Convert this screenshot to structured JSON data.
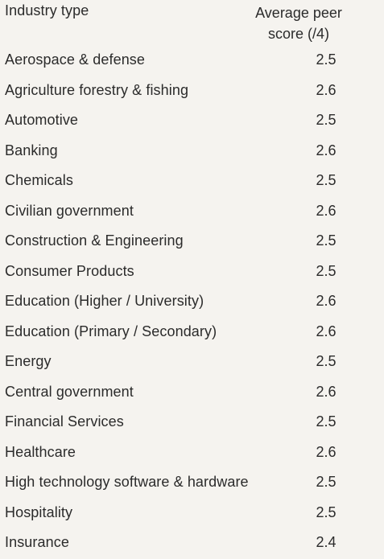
{
  "header": {
    "industry_label": "Industry type",
    "score_label_line1": "Average peer",
    "score_label_line2": "score (/4)"
  },
  "rows": [
    {
      "industry": "Aerospace & defense",
      "score": "2.5"
    },
    {
      "industry": "Agriculture forestry & fishing",
      "score": "2.6"
    },
    {
      "industry": "Automotive",
      "score": "2.5"
    },
    {
      "industry": "Banking",
      "score": "2.6"
    },
    {
      "industry": "Chemicals",
      "score": "2.5"
    },
    {
      "industry": "Civilian government",
      "score": "2.6"
    },
    {
      "industry": "Construction & Engineering",
      "score": "2.5"
    },
    {
      "industry": "Consumer Products",
      "score": "2.5"
    },
    {
      "industry": "Education (Higher / University)",
      "score": "2.6"
    },
    {
      "industry": "Education (Primary / Secondary)",
      "score": "2.6"
    },
    {
      "industry": "Energy",
      "score": "2.5"
    },
    {
      "industry": "Central government",
      "score": "2.6"
    },
    {
      "industry": "Financial Services",
      "score": "2.5"
    },
    {
      "industry": "Healthcare",
      "score": "2.6"
    },
    {
      "industry": "High technology software & hardware",
      "score": "2.5"
    },
    {
      "industry": "Hospitality",
      "score": "2.5"
    },
    {
      "industry": "Insurance",
      "score": "2.4"
    }
  ]
}
